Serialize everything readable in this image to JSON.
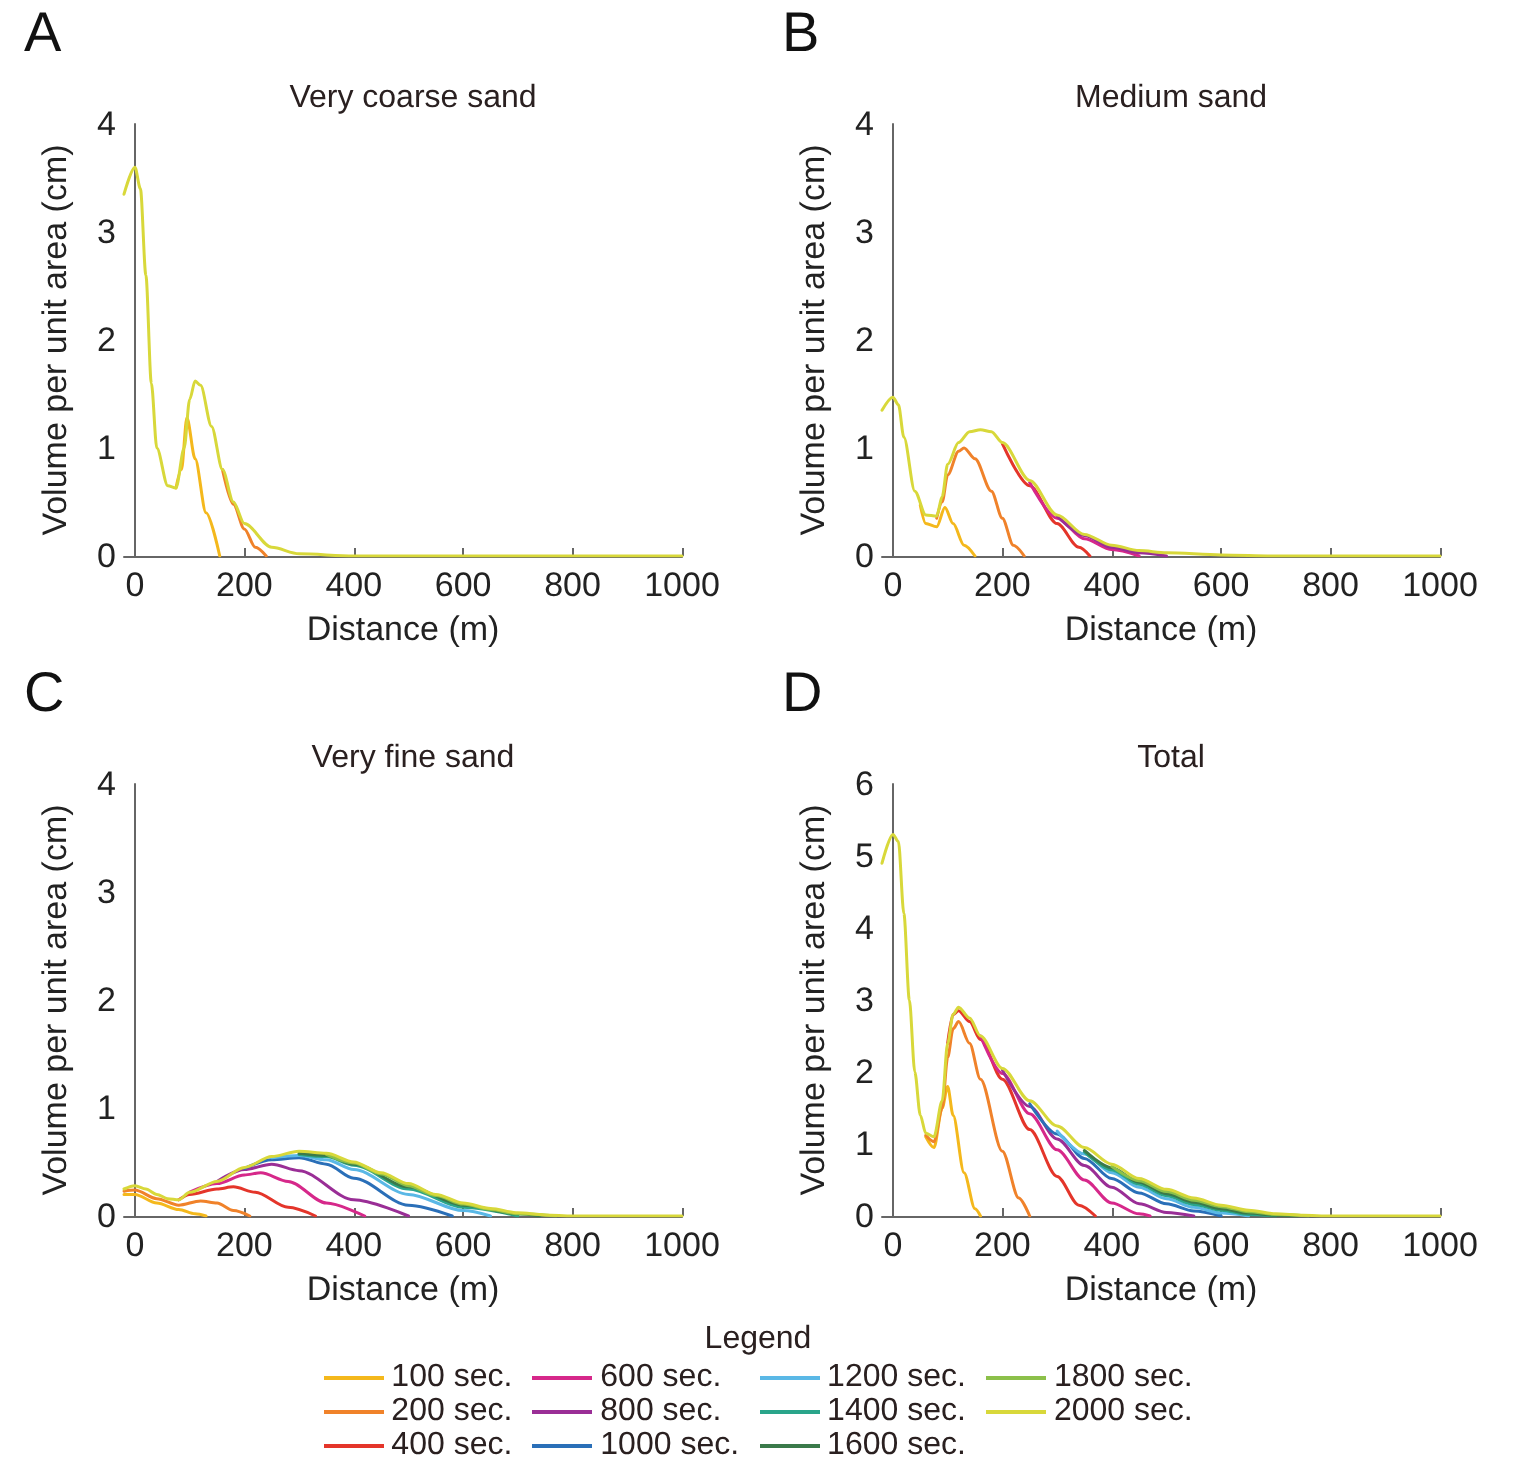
{
  "chart_data": [
    {
      "type": "line",
      "title": "Very coarse sand",
      "xlabel": "Distance (m)",
      "ylabel": "Volume per unit area (cm)",
      "annotations": [
        "A"
      ],
      "xlim": [
        -20,
        1000
      ],
      "xticks": [
        0,
        200,
        400,
        600,
        800,
        1000
      ],
      "ylim": [
        0,
        4
      ],
      "yticks": [
        0,
        1,
        2,
        3,
        4
      ],
      "grid": false,
      "series": [
        {
          "color": "#f4b81c",
          "x": [
            75,
            85,
            95,
            110,
            130,
            155
          ],
          "values": [
            0.63,
            0.8,
            1.28,
            0.9,
            0.4,
            0
          ]
        },
        {
          "color": "#f0822a",
          "x": [
            160,
            180,
            200,
            220,
            240
          ],
          "values": [
            0.8,
            0.48,
            0.25,
            0.08,
            0
          ]
        },
        {
          "color": "#d8d83a",
          "x": [
            -20,
            0,
            10,
            20,
            30,
            40,
            60,
            75,
            90,
            100,
            110,
            120,
            140,
            160,
            180,
            200,
            250,
            300,
            400,
            1000
          ],
          "values": [
            3.35,
            3.6,
            3.4,
            2.6,
            1.6,
            1.0,
            0.65,
            0.63,
            1.0,
            1.45,
            1.62,
            1.58,
            1.2,
            0.8,
            0.5,
            0.3,
            0.08,
            0.02,
            0,
            0
          ]
        }
      ]
    },
    {
      "type": "line",
      "title": "Medium sand",
      "xlabel": "Distance (m)",
      "ylabel": "Volume per unit area (cm)",
      "annotations": [
        "B"
      ],
      "xlim": [
        -20,
        1000
      ],
      "xticks": [
        0,
        200,
        400,
        600,
        800,
        1000
      ],
      "ylim": [
        0,
        4
      ],
      "yticks": [
        0,
        1,
        2,
        3,
        4
      ],
      "grid": false,
      "series": [
        {
          "color": "#f4b81c",
          "x": [
            50,
            60,
            80,
            95,
            110,
            130,
            150
          ],
          "values": [
            0.47,
            0.3,
            0.27,
            0.45,
            0.3,
            0.1,
            0
          ]
        },
        {
          "color": "#f0822a",
          "x": [
            80,
            90,
            100,
            120,
            130,
            150,
            180,
            200,
            220,
            240
          ],
          "values": [
            0.35,
            0.5,
            0.75,
            0.97,
            1.0,
            0.9,
            0.6,
            0.35,
            0.1,
            0
          ]
        },
        {
          "color": "#e4352a",
          "x": [
            200,
            250,
            300,
            340,
            360
          ],
          "values": [
            1.04,
            0.65,
            0.3,
            0.08,
            0
          ]
        },
        {
          "color": "#d6288a",
          "x": [
            250,
            300,
            350,
            400,
            450
          ],
          "values": [
            0.68,
            0.35,
            0.16,
            0.06,
            0
          ]
        },
        {
          "color": "#9a2e96",
          "x": [
            300,
            350,
            400,
            450,
            500
          ],
          "values": [
            0.37,
            0.19,
            0.08,
            0.03,
            0
          ]
        },
        {
          "color": "#d8d83a",
          "x": [
            -20,
            0,
            10,
            20,
            40,
            60,
            80,
            90,
            100,
            120,
            140,
            160,
            180,
            200,
            250,
            300,
            350,
            400,
            450,
            500,
            600,
            700,
            1000
          ],
          "values": [
            1.35,
            1.47,
            1.4,
            1.1,
            0.6,
            0.38,
            0.37,
            0.55,
            0.85,
            1.05,
            1.15,
            1.17,
            1.15,
            1.05,
            0.7,
            0.38,
            0.2,
            0.1,
            0.05,
            0.03,
            0.01,
            0,
            0
          ]
        }
      ]
    },
    {
      "type": "line",
      "title": "Very fine sand",
      "xlabel": "Distance (m)",
      "ylabel": "Volume per unit area (cm)",
      "annotations": [
        "C"
      ],
      "xlim": [
        -20,
        1000
      ],
      "xticks": [
        0,
        200,
        400,
        600,
        800,
        1000
      ],
      "ylim": [
        0,
        4
      ],
      "yticks": [
        0,
        1,
        2,
        3,
        4
      ],
      "grid": false,
      "series": [
        {
          "color": "#f4b81c",
          "x": [
            -20,
            0,
            40,
            80,
            110,
            130
          ],
          "values": [
            0.2,
            0.2,
            0.12,
            0.06,
            0.02,
            0
          ]
        },
        {
          "color": "#f0822a",
          "x": [
            -20,
            0,
            40,
            80,
            120,
            150,
            180,
            210
          ],
          "values": [
            0.23,
            0.24,
            0.16,
            0.1,
            0.14,
            0.12,
            0.05,
            0
          ]
        },
        {
          "color": "#e4352a",
          "x": [
            80,
            100,
            150,
            180,
            220,
            280,
            330
          ],
          "values": [
            0.15,
            0.2,
            0.25,
            0.27,
            0.22,
            0.08,
            0
          ]
        },
        {
          "color": "#d6288a",
          "x": [
            100,
            150,
            200,
            230,
            280,
            350,
            420
          ],
          "values": [
            0.22,
            0.3,
            0.38,
            0.4,
            0.32,
            0.12,
            0
          ]
        },
        {
          "color": "#9a2e96",
          "x": [
            150,
            200,
            250,
            300,
            400,
            500
          ],
          "values": [
            0.32,
            0.43,
            0.48,
            0.42,
            0.15,
            0
          ]
        },
        {
          "color": "#2a6fb8",
          "x": [
            200,
            250,
            300,
            350,
            400,
            500,
            580
          ],
          "values": [
            0.44,
            0.52,
            0.54,
            0.48,
            0.35,
            0.1,
            0
          ]
        },
        {
          "color": "#5ab8e6",
          "x": [
            250,
            300,
            350,
            400,
            500,
            600,
            650
          ],
          "values": [
            0.54,
            0.56,
            0.52,
            0.43,
            0.2,
            0.05,
            0
          ]
        },
        {
          "color": "#2aa58a",
          "x": [
            300,
            350,
            400,
            500,
            600,
            700
          ],
          "values": [
            0.57,
            0.55,
            0.47,
            0.25,
            0.08,
            0
          ]
        },
        {
          "color": "#3a7a4a",
          "x": [
            300,
            350,
            400,
            500,
            600,
            700,
            740
          ],
          "values": [
            0.58,
            0.56,
            0.48,
            0.27,
            0.1,
            0.02,
            0
          ]
        },
        {
          "color": "#8cc04a",
          "x": [
            350,
            400,
            450,
            500,
            550,
            600,
            650,
            700,
            770
          ],
          "values": [
            0.57,
            0.49,
            0.39,
            0.28,
            0.19,
            0.11,
            0.06,
            0.02,
            0
          ]
        },
        {
          "color": "#d8d83a",
          "x": [
            -20,
            0,
            20,
            40,
            60,
            80,
            100,
            150,
            200,
            250,
            300,
            350,
            400,
            450,
            500,
            550,
            600,
            650,
            700,
            750,
            800,
            1000
          ],
          "values": [
            0.25,
            0.28,
            0.25,
            0.2,
            0.16,
            0.15,
            0.22,
            0.32,
            0.45,
            0.55,
            0.6,
            0.58,
            0.5,
            0.4,
            0.3,
            0.2,
            0.12,
            0.07,
            0.03,
            0.01,
            0,
            0
          ]
        }
      ]
    },
    {
      "type": "line",
      "title": "Total",
      "xlabel": "Distance (m)",
      "ylabel": "Volume per unit area (cm)",
      "annotations": [
        "D"
      ],
      "xlim": [
        -20,
        1000
      ],
      "xticks": [
        0,
        200,
        400,
        600,
        800,
        1000
      ],
      "ylim": [
        0,
        6
      ],
      "yticks": [
        0,
        1,
        2,
        3,
        4,
        5,
        6
      ],
      "grid": false,
      "legend": "bottom",
      "legend_title": "Legend",
      "series": [
        {
          "name": "100 sec.",
          "color": "#f4b81c",
          "x": [
            60,
            75,
            90,
            100,
            110,
            130,
            150,
            160
          ],
          "values": [
            1.1,
            0.95,
            1.5,
            1.8,
            1.4,
            0.6,
            0.1,
            0
          ]
        },
        {
          "name": "200 sec.",
          "color": "#f0822a",
          "x": [
            60,
            75,
            90,
            100,
            110,
            120,
            140,
            160,
            200,
            230,
            250
          ],
          "values": [
            1.12,
            1.03,
            1.5,
            2.2,
            2.6,
            2.7,
            2.4,
            1.9,
            0.9,
            0.25,
            0
          ]
        },
        {
          "name": "400 sec.",
          "color": "#e4352a",
          "x": [
            100,
            110,
            120,
            140,
            160,
            200,
            250,
            300,
            340,
            370
          ],
          "values": [
            2.4,
            2.8,
            2.85,
            2.7,
            2.45,
            1.9,
            1.2,
            0.55,
            0.15,
            0
          ]
        },
        {
          "name": "600 sec.",
          "color": "#d6288a",
          "x": [
            160,
            200,
            250,
            300,
            350,
            400,
            450,
            470
          ],
          "values": [
            2.5,
            1.98,
            1.42,
            0.92,
            0.5,
            0.18,
            0.03,
            0
          ]
        },
        {
          "name": "800 sec.",
          "color": "#9a2e96",
          "x": [
            200,
            250,
            300,
            350,
            400,
            450,
            500,
            550
          ],
          "values": [
            2.03,
            1.52,
            1.07,
            0.7,
            0.4,
            0.17,
            0.05,
            0
          ]
        },
        {
          "name": "1000 sec.",
          "color": "#2a6fb8",
          "x": [
            250,
            300,
            350,
            400,
            450,
            500,
            550,
            600
          ],
          "values": [
            1.56,
            1.14,
            0.8,
            0.52,
            0.32,
            0.17,
            0.07,
            0
          ]
        },
        {
          "name": "1200 sec.",
          "color": "#5ab8e6",
          "x": [
            300,
            350,
            400,
            450,
            500,
            550,
            600,
            650
          ],
          "values": [
            1.18,
            0.86,
            0.6,
            0.4,
            0.24,
            0.12,
            0.04,
            0
          ]
        },
        {
          "name": "1400 sec.",
          "color": "#2aa58a",
          "x": [
            350,
            400,
            450,
            500,
            550,
            600,
            650,
            700
          ],
          "values": [
            0.89,
            0.64,
            0.44,
            0.28,
            0.16,
            0.08,
            0.02,
            0
          ]
        },
        {
          "name": "1600 sec.",
          "color": "#3a7a4a",
          "x": [
            350,
            400,
            450,
            500,
            550,
            600,
            650,
            700,
            740
          ],
          "values": [
            0.91,
            0.67,
            0.47,
            0.31,
            0.19,
            0.1,
            0.04,
            0.01,
            0
          ]
        },
        {
          "name": "1800 sec.",
          "color": "#8cc04a",
          "x": [
            400,
            450,
            500,
            550,
            600,
            650,
            700,
            760
          ],
          "values": [
            0.69,
            0.49,
            0.34,
            0.22,
            0.13,
            0.06,
            0.02,
            0
          ]
        },
        {
          "name": "2000 sec.",
          "color": "#d8d83a",
          "x": [
            -20,
            0,
            10,
            20,
            30,
            40,
            50,
            60,
            75,
            90,
            100,
            110,
            120,
            140,
            160,
            200,
            250,
            300,
            350,
            400,
            450,
            500,
            550,
            600,
            650,
            700,
            750,
            800,
            1000
          ],
          "values": [
            4.9,
            5.3,
            5.2,
            4.2,
            3.0,
            2.0,
            1.4,
            1.15,
            1.1,
            1.6,
            2.4,
            2.8,
            2.9,
            2.75,
            2.5,
            2.05,
            1.6,
            1.25,
            0.95,
            0.72,
            0.52,
            0.37,
            0.25,
            0.15,
            0.08,
            0.03,
            0.01,
            0,
            0
          ]
        }
      ]
    }
  ]
}
